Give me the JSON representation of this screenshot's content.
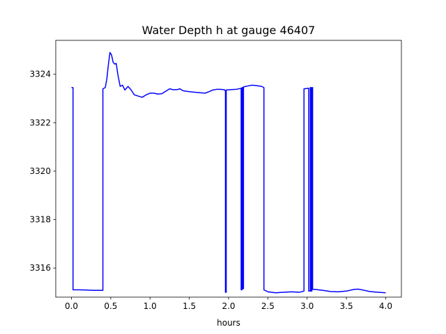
{
  "chart_data": {
    "type": "line",
    "title": "Water Depth h at gauge 46407",
    "xlabel": "hours",
    "ylabel": "",
    "xlim": [
      -0.2,
      4.2
    ],
    "ylim": [
      3314.8,
      3325.4
    ],
    "xticks": [
      0.0,
      0.5,
      1.0,
      1.5,
      2.0,
      2.5,
      3.0,
      3.5,
      4.0
    ],
    "xtick_labels": [
      "0.0",
      "0.5",
      "1.0",
      "1.5",
      "2.0",
      "2.5",
      "3.0",
      "3.5",
      "4.0"
    ],
    "yticks": [
      3316,
      3318,
      3320,
      3322,
      3324
    ],
    "ytick_labels": [
      "3316",
      "3318",
      "3320",
      "3322",
      "3324"
    ],
    "grid": false,
    "series": [
      {
        "color": "#0000ff",
        "points": [
          [
            0.0,
            3323.45
          ],
          [
            0.02,
            3323.45
          ],
          [
            0.02,
            3315.1
          ],
          [
            0.1,
            3315.1
          ],
          [
            0.2,
            3315.09
          ],
          [
            0.3,
            3315.08
          ],
          [
            0.4,
            3315.08
          ],
          [
            0.4,
            3323.4
          ],
          [
            0.43,
            3323.45
          ],
          [
            0.45,
            3323.8
          ],
          [
            0.47,
            3324.4
          ],
          [
            0.49,
            3324.9
          ],
          [
            0.51,
            3324.8
          ],
          [
            0.53,
            3324.5
          ],
          [
            0.55,
            3324.42
          ],
          [
            0.57,
            3324.45
          ],
          [
            0.59,
            3324.0
          ],
          [
            0.62,
            3323.5
          ],
          [
            0.65,
            3323.55
          ],
          [
            0.68,
            3323.35
          ],
          [
            0.72,
            3323.5
          ],
          [
            0.76,
            3323.35
          ],
          [
            0.8,
            3323.15
          ],
          [
            0.85,
            3323.1
          ],
          [
            0.9,
            3323.05
          ],
          [
            0.95,
            3323.15
          ],
          [
            1.0,
            3323.22
          ],
          [
            1.05,
            3323.22
          ],
          [
            1.1,
            3323.18
          ],
          [
            1.15,
            3323.2
          ],
          [
            1.2,
            3323.3
          ],
          [
            1.25,
            3323.4
          ],
          [
            1.3,
            3323.36
          ],
          [
            1.35,
            3323.37
          ],
          [
            1.38,
            3323.4
          ],
          [
            1.42,
            3323.32
          ],
          [
            1.5,
            3323.28
          ],
          [
            1.6,
            3323.25
          ],
          [
            1.7,
            3323.22
          ],
          [
            1.75,
            3323.28
          ],
          [
            1.8,
            3323.35
          ],
          [
            1.85,
            3323.38
          ],
          [
            1.9,
            3323.38
          ],
          [
            1.95,
            3323.36
          ],
          [
            1.96,
            3323.3
          ],
          [
            1.96,
            3315.0
          ],
          [
            1.97,
            3315.0
          ],
          [
            1.97,
            3323.35
          ],
          [
            2.05,
            3323.37
          ],
          [
            2.1,
            3323.38
          ],
          [
            2.16,
            3323.42
          ],
          [
            2.16,
            3315.1
          ],
          [
            2.17,
            3315.1
          ],
          [
            2.17,
            3323.45
          ],
          [
            2.18,
            3323.45
          ],
          [
            2.18,
            3315.15
          ],
          [
            2.19,
            3315.15
          ],
          [
            2.19,
            3323.48
          ],
          [
            2.25,
            3323.52
          ],
          [
            2.3,
            3323.55
          ],
          [
            2.36,
            3323.53
          ],
          [
            2.42,
            3323.5
          ],
          [
            2.45,
            3323.45
          ],
          [
            2.45,
            3315.1
          ],
          [
            2.5,
            3315.02
          ],
          [
            2.6,
            3314.98
          ],
          [
            2.7,
            3315.0
          ],
          [
            2.8,
            3315.02
          ],
          [
            2.9,
            3315.0
          ],
          [
            2.96,
            3315.05
          ],
          [
            2.96,
            3323.4
          ],
          [
            3.02,
            3323.42
          ],
          [
            3.02,
            3315.05
          ],
          [
            3.04,
            3315.05
          ],
          [
            3.04,
            3323.45
          ],
          [
            3.05,
            3323.45
          ],
          [
            3.05,
            3315.05
          ],
          [
            3.06,
            3315.05
          ],
          [
            3.06,
            3323.45
          ],
          [
            3.07,
            3323.45
          ],
          [
            3.07,
            3315.12
          ],
          [
            3.1,
            3315.12
          ],
          [
            3.2,
            3315.08
          ],
          [
            3.3,
            3315.03
          ],
          [
            3.4,
            3315.02
          ],
          [
            3.5,
            3315.05
          ],
          [
            3.6,
            3315.12
          ],
          [
            3.65,
            3315.13
          ],
          [
            3.7,
            3315.1
          ],
          [
            3.8,
            3315.03
          ],
          [
            3.9,
            3315.0
          ],
          [
            4.0,
            3314.98
          ]
        ]
      }
    ]
  }
}
